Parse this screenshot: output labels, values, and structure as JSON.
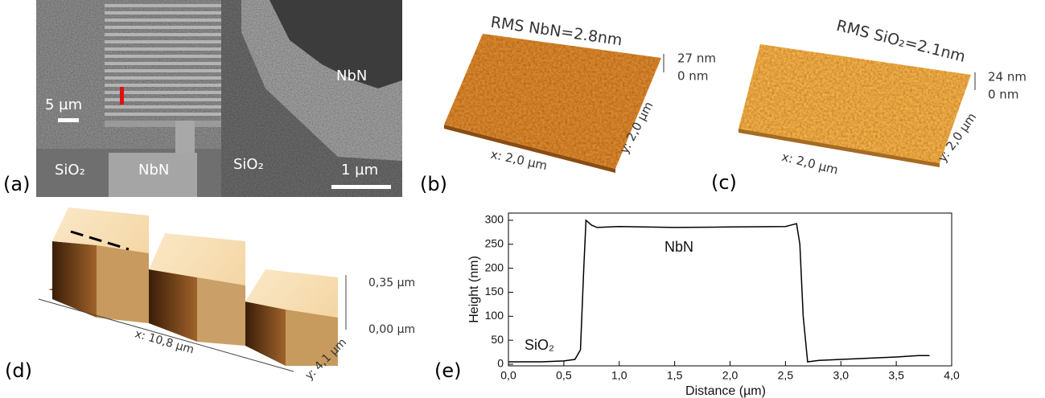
{
  "panels": {
    "a": {
      "label": "(a)",
      "scale_left": "5 µm",
      "scale_right": "1 µm",
      "sio2_left": "SiO₂",
      "nbn_left": "NbN",
      "sio2_right": "SiO₂",
      "nbn_right": "NbN"
    },
    "b": {
      "label": "(b)",
      "title": "RMS NbN=2.8nm",
      "z_top": "27 nm",
      "z_bottom": "0 nm",
      "x_axis": "x: 2,0 µm",
      "y_axis": "y: 2,0 µm"
    },
    "c": {
      "label": "(c)",
      "title": "RMS SiO₂=2.1nm",
      "z_top": "24 nm",
      "z_bottom": "0 nm",
      "x_axis": "x: 2,0 µm",
      "y_axis": "y: 2,0 µm"
    },
    "d": {
      "label": "(d)",
      "z_top": "0,35 µm",
      "z_bottom": "0,00 µm",
      "x_axis": "x: 10,8 µm",
      "y_axis": "y: 4,1 µm"
    },
    "e": {
      "label": "(e)"
    }
  },
  "chart_data": {
    "type": "line",
    "x_label": "Distance (µm)",
    "y_label": "Height (nm)",
    "annotations": [
      "NbN",
      "SiO₂"
    ],
    "x": [
      0,
      0.1,
      0.3,
      0.5,
      0.6,
      0.65,
      0.68,
      0.7,
      0.75,
      0.8,
      1.0,
      1.5,
      2.0,
      2.5,
      2.55,
      2.6,
      2.63,
      2.66,
      2.7,
      2.8,
      3.0,
      3.5,
      3.7,
      3.8
    ],
    "values": [
      5,
      5,
      5,
      7,
      10,
      30,
      200,
      300,
      290,
      285,
      287,
      285,
      286,
      287,
      290,
      293,
      250,
      100,
      5,
      8,
      10,
      15,
      18,
      18
    ],
    "color": "#000000",
    "xlim": [
      0,
      4
    ],
    "ylim": [
      0,
      315
    ],
    "xticks": [
      {
        "value": 0,
        "label": "0,0"
      },
      {
        "value": 0.5,
        "label": "0,5"
      },
      {
        "value": 1,
        "label": "1,0"
      },
      {
        "value": 1.5,
        "label": "1,5"
      },
      {
        "value": 2,
        "label": "2,0"
      },
      {
        "value": 2.5,
        "label": "2,5"
      },
      {
        "value": 3,
        "label": "3,0"
      },
      {
        "value": 3.5,
        "label": "3,5"
      },
      {
        "value": 4,
        "label": "4,0"
      }
    ],
    "yticks": [
      0,
      50,
      100,
      150,
      200,
      250,
      300
    ]
  }
}
